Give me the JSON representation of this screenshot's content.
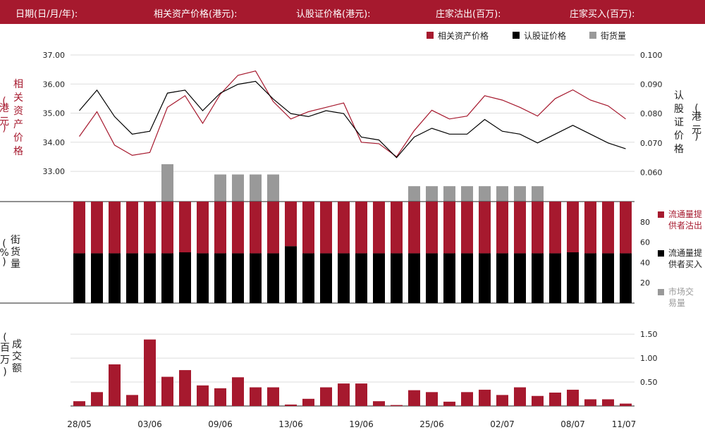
{
  "header": {
    "date_label": "日期(日/月/年):",
    "asset_price_label": "相关资产价格(港元):",
    "warrant_price_label": "认股证价格(港元):",
    "mm_sell_label": "庄家沽出(百万):",
    "mm_buy_label": "庄家买入(百万):"
  },
  "colors": {
    "brand": "#a6192e",
    "warrant": "#000000",
    "inventory": "#999999",
    "grid": "#dddddd"
  },
  "chart_data": [
    {
      "type": "line",
      "legend": [
        {
          "name": "相关资产价格",
          "color": "#a6192e"
        },
        {
          "name": "认股证价格",
          "color": "#000000"
        },
        {
          "name": "街货量",
          "color": "#999999"
        }
      ],
      "ylabel_left": "相关资产价格 (港元)",
      "ylabel_right": "认股证价格 (港元)",
      "y_left_ticks": [
        "37.00",
        "36.00",
        "35.00",
        "34.00",
        "33.00"
      ],
      "y_right_ticks": [
        "0.100",
        "0.090",
        "0.080",
        "0.070",
        "0.060"
      ],
      "ylim_left": [
        31.96,
        37.0
      ],
      "ylim_right": [
        0.05,
        0.1
      ],
      "asset_price": [
        34.2,
        35.05,
        33.9,
        33.55,
        33.65,
        35.2,
        35.6,
        34.65,
        35.65,
        36.3,
        36.45,
        35.4,
        34.8,
        35.05,
        35.2,
        35.35,
        34.0,
        33.95,
        33.5,
        34.4,
        35.1,
        34.8,
        34.9,
        35.6,
        35.45,
        35.2,
        34.9,
        35.5,
        35.8,
        35.45,
        35.25,
        34.8
      ],
      "warrant_price": [
        0.081,
        0.088,
        0.079,
        0.073,
        0.074,
        0.087,
        0.088,
        0.081,
        0.087,
        0.09,
        0.091,
        0.085,
        0.08,
        0.079,
        0.081,
        0.08,
        0.072,
        0.071,
        0.065,
        0.072,
        0.075,
        0.073,
        0.073,
        0.078,
        0.074,
        0.073,
        0.07,
        0.073,
        0.076,
        0.073,
        0.07,
        0.068
      ],
      "outstanding_pct": [
        null,
        null,
        null,
        null,
        null,
        25.5,
        null,
        null,
        18.5,
        18.5,
        18.5,
        18.5,
        null,
        null,
        null,
        null,
        null,
        null,
        null,
        10.5,
        10.5,
        10.5,
        10.5,
        10.5,
        10.5,
        10.5,
        10.5,
        null,
        null,
        null,
        null,
        null
      ]
    },
    {
      "type": "bar",
      "stacked": true,
      "ylabel": "街货量 (%)",
      "y_ticks": [
        "80",
        "60",
        "40",
        "20"
      ],
      "ylim": [
        0,
        100
      ],
      "legend": [
        {
          "name": "流通量提供者沽出",
          "color": "#a6192e"
        },
        {
          "name": "流通量提供者买入",
          "color": "#000000"
        },
        {
          "name": "市场交易量",
          "color": "#999999"
        }
      ],
      "buy_pct": [
        49,
        49,
        49,
        49,
        49,
        49,
        50,
        49,
        49,
        49,
        49,
        49,
        56,
        49,
        49,
        49,
        49,
        49,
        49,
        49,
        49,
        49,
        49,
        49,
        49,
        49,
        49,
        49,
        50,
        49,
        49,
        49
      ]
    },
    {
      "type": "bar",
      "ylabel": "成交额 (百万)",
      "y_ticks": [
        "1.50",
        "1.00",
        "0.50"
      ],
      "ylim": [
        0,
        1.65
      ],
      "x_ticks": [
        {
          "index": 0,
          "label": "28/05"
        },
        {
          "index": 4,
          "label": "03/06"
        },
        {
          "index": 8,
          "label": "09/06"
        },
        {
          "index": 12,
          "label": "13/06"
        },
        {
          "index": 16,
          "label": "19/06"
        },
        {
          "index": 20,
          "label": "25/06"
        },
        {
          "index": 24,
          "label": "02/07"
        },
        {
          "index": 28,
          "label": "08/07"
        },
        {
          "index": 31,
          "label": "11/07"
        }
      ],
      "turnover": [
        0.1,
        0.29,
        0.87,
        0.23,
        1.39,
        0.61,
        0.75,
        0.43,
        0.37,
        0.6,
        0.39,
        0.39,
        0.03,
        0.15,
        0.39,
        0.47,
        0.47,
        0.1,
        0.02,
        0.33,
        0.29,
        0.09,
        0.29,
        0.34,
        0.23,
        0.39,
        0.21,
        0.28,
        0.34,
        0.14,
        0.14,
        0.05
      ]
    }
  ]
}
